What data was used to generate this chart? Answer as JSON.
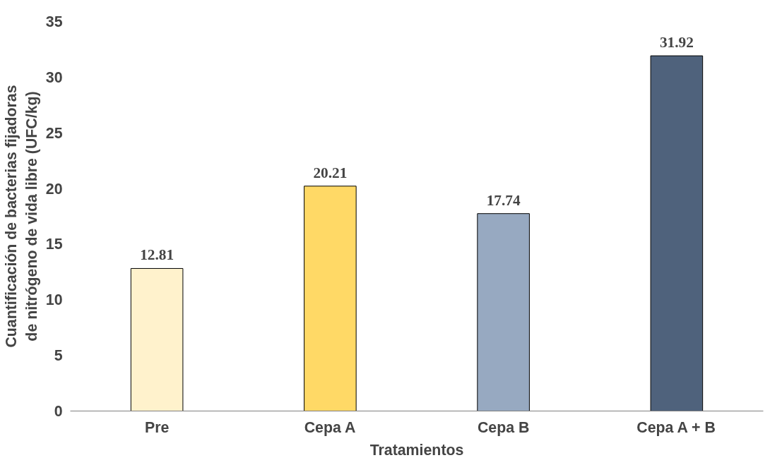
{
  "chart_data": {
    "type": "bar",
    "xlabel": "Tratamientos",
    "ylabel": "Cuantificación de bacterias fijadoras\nde nitrógeno de vida libre (UFC/kg)",
    "categories": [
      "Pre",
      "Cepa A",
      "Cepa B",
      "Cepa A + B"
    ],
    "values": [
      12.81,
      20.21,
      17.74,
      31.92
    ],
    "colors": [
      "#fff2cc",
      "#ffd966",
      "#97a9c1",
      "#4f627c"
    ],
    "ylim": [
      0,
      35
    ],
    "yticks": [
      0,
      5,
      10,
      15,
      20,
      25,
      30,
      35
    ],
    "grid": false,
    "data_labels": true
  }
}
